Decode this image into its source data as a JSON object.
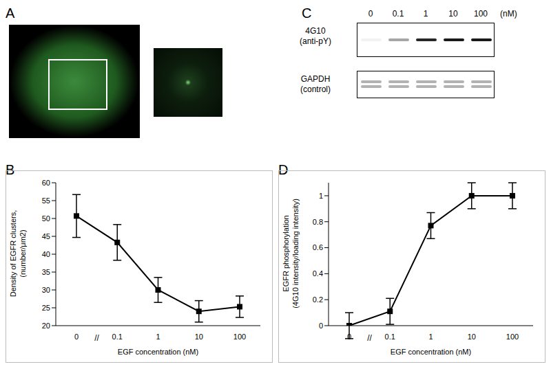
{
  "panel_labels": [
    "A",
    "B",
    "C",
    "D"
  ],
  "chart_data": [
    {
      "type": "line",
      "x_label": "EGF concentration (nM)",
      "y_label": [
        "Density of EGFR clusters,",
        "(number/μm2)"
      ],
      "categories": [
        "0",
        "0.1",
        "1",
        "10",
        "100"
      ],
      "values": [
        50.7,
        43.3,
        30.0,
        24.0,
        25.3
      ],
      "errors": [
        6,
        5,
        3.5,
        3,
        3
      ],
      "color": "#000000",
      "marker": "square",
      "ylim": [
        20,
        60
      ],
      "yticks": [
        20,
        25,
        30,
        35,
        40,
        45,
        50,
        55,
        60
      ],
      "annotation": "//"
    },
    {
      "type": "line",
      "x_label": "EGF concentration (nM)",
      "y_label": [
        "EGFR phosphorylation",
        "(4G10 intensity/loading intensity)"
      ],
      "categories": [
        "0",
        "0.1",
        "1",
        "10",
        "100"
      ],
      "values": [
        0,
        0.11,
        0.77,
        1,
        1
      ],
      "errors": [
        0.1,
        0.1,
        0.1,
        0.1,
        0.1
      ],
      "color": "#000000",
      "marker": "square",
      "ylim": [
        0,
        1.1
      ],
      "yticks": [
        0,
        0.2,
        0.4,
        0.6,
        0.8,
        1
      ],
      "annotation": "//"
    }
  ],
  "blot": {
    "lanes": [
      "0",
      "0.1",
      "1",
      "10",
      "100"
    ],
    "unit": "(nM)",
    "rows": [
      {
        "label": [
          "4G10",
          "(anti-pY)"
        ],
        "intensity": [
          0.05,
          0.35,
          0.85,
          0.9,
          0.9
        ],
        "bands_per_lane": 1
      },
      {
        "label": [
          "GAPDH",
          "(control)"
        ],
        "intensity": [
          0.3,
          0.3,
          0.3,
          0.3,
          0.3
        ],
        "bands_per_lane": 2
      }
    ]
  }
}
